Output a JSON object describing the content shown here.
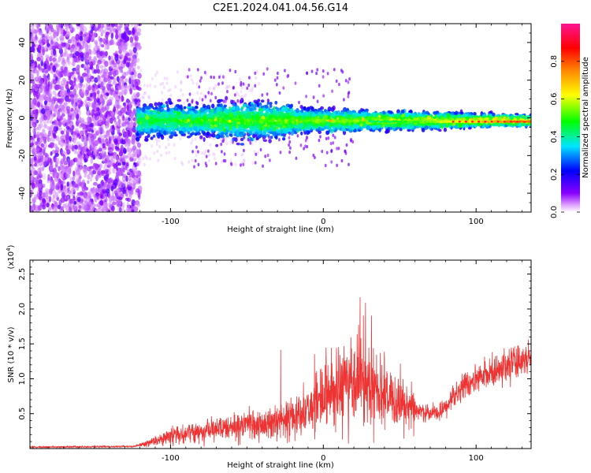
{
  "title": "C2E1.2024.041.04.56.G14",
  "chart_data": [
    {
      "type": "heatmap",
      "xlabel": "Height of straight line (km)",
      "ylabel": "Frequency (Hz)",
      "xlim": [
        -192,
        136
      ],
      "ylim": [
        -50,
        50
      ],
      "xticks": [
        -100,
        0,
        100
      ],
      "yticks": [
        -40,
        -20,
        0,
        20,
        40
      ],
      "colorbar": {
        "label": "Normalized spectral amplitude",
        "range": [
          0,
          1
        ],
        "ticks": [
          0.0,
          0.2,
          0.4,
          0.6,
          0.8
        ],
        "colors": [
          "#ffffff",
          "#8a00ff",
          "#0000ff",
          "#00e5ff",
          "#00ff00",
          "#ffff00",
          "#ff8800",
          "#ff0000",
          "#ff1493"
        ]
      },
      "regions": [
        {
          "x_range": [
            -192,
            -120
          ],
          "freq_range": [
            -50,
            50
          ],
          "amplitude": 0.05,
          "description": "broadband scatter"
        },
        {
          "x_range": [
            -120,
            136
          ],
          "freq_center": -1.5,
          "freq_halfwidth_start": 10,
          "freq_halfwidth_end": 3,
          "description": "narrowing carrier band"
        },
        {
          "x_range": [
            80,
            136
          ],
          "freq": -2,
          "amplitude": 0.8,
          "description": "strong carrier line"
        }
      ]
    },
    {
      "type": "line",
      "xlabel": "Height of straight line (km)",
      "ylabel": "SNR (10 * v/v)",
      "y_multiplier": "(x10",
      "y_multiplier_exp": "4",
      "y_multiplier_close": ")",
      "xlim": [
        -192,
        136
      ],
      "ylim": [
        0,
        2.7
      ],
      "xticks": [
        -100,
        0,
        100
      ],
      "yticks": [
        0.5,
        1.0,
        1.5,
        2.0,
        2.5
      ],
      "ytick_labels": [
        "0.5",
        "1.0",
        "1.5",
        "2.0",
        "2.5"
      ],
      "color": "#ee3333",
      "envelope": {
        "x": [
          -192,
          -125,
          -115,
          -100,
          -80,
          -60,
          -40,
          -25,
          -10,
          0,
          10,
          20,
          28,
          35,
          45,
          60,
          75,
          80,
          90,
          100,
          110,
          120,
          130,
          136
        ],
        "y": [
          0.02,
          0.03,
          0.08,
          0.18,
          0.25,
          0.3,
          0.35,
          0.4,
          0.55,
          0.75,
          0.85,
          0.9,
          0.95,
          0.85,
          0.7,
          0.55,
          0.5,
          0.6,
          0.85,
          1.0,
          1.1,
          1.2,
          1.25,
          1.3
        ]
      }
    }
  ]
}
